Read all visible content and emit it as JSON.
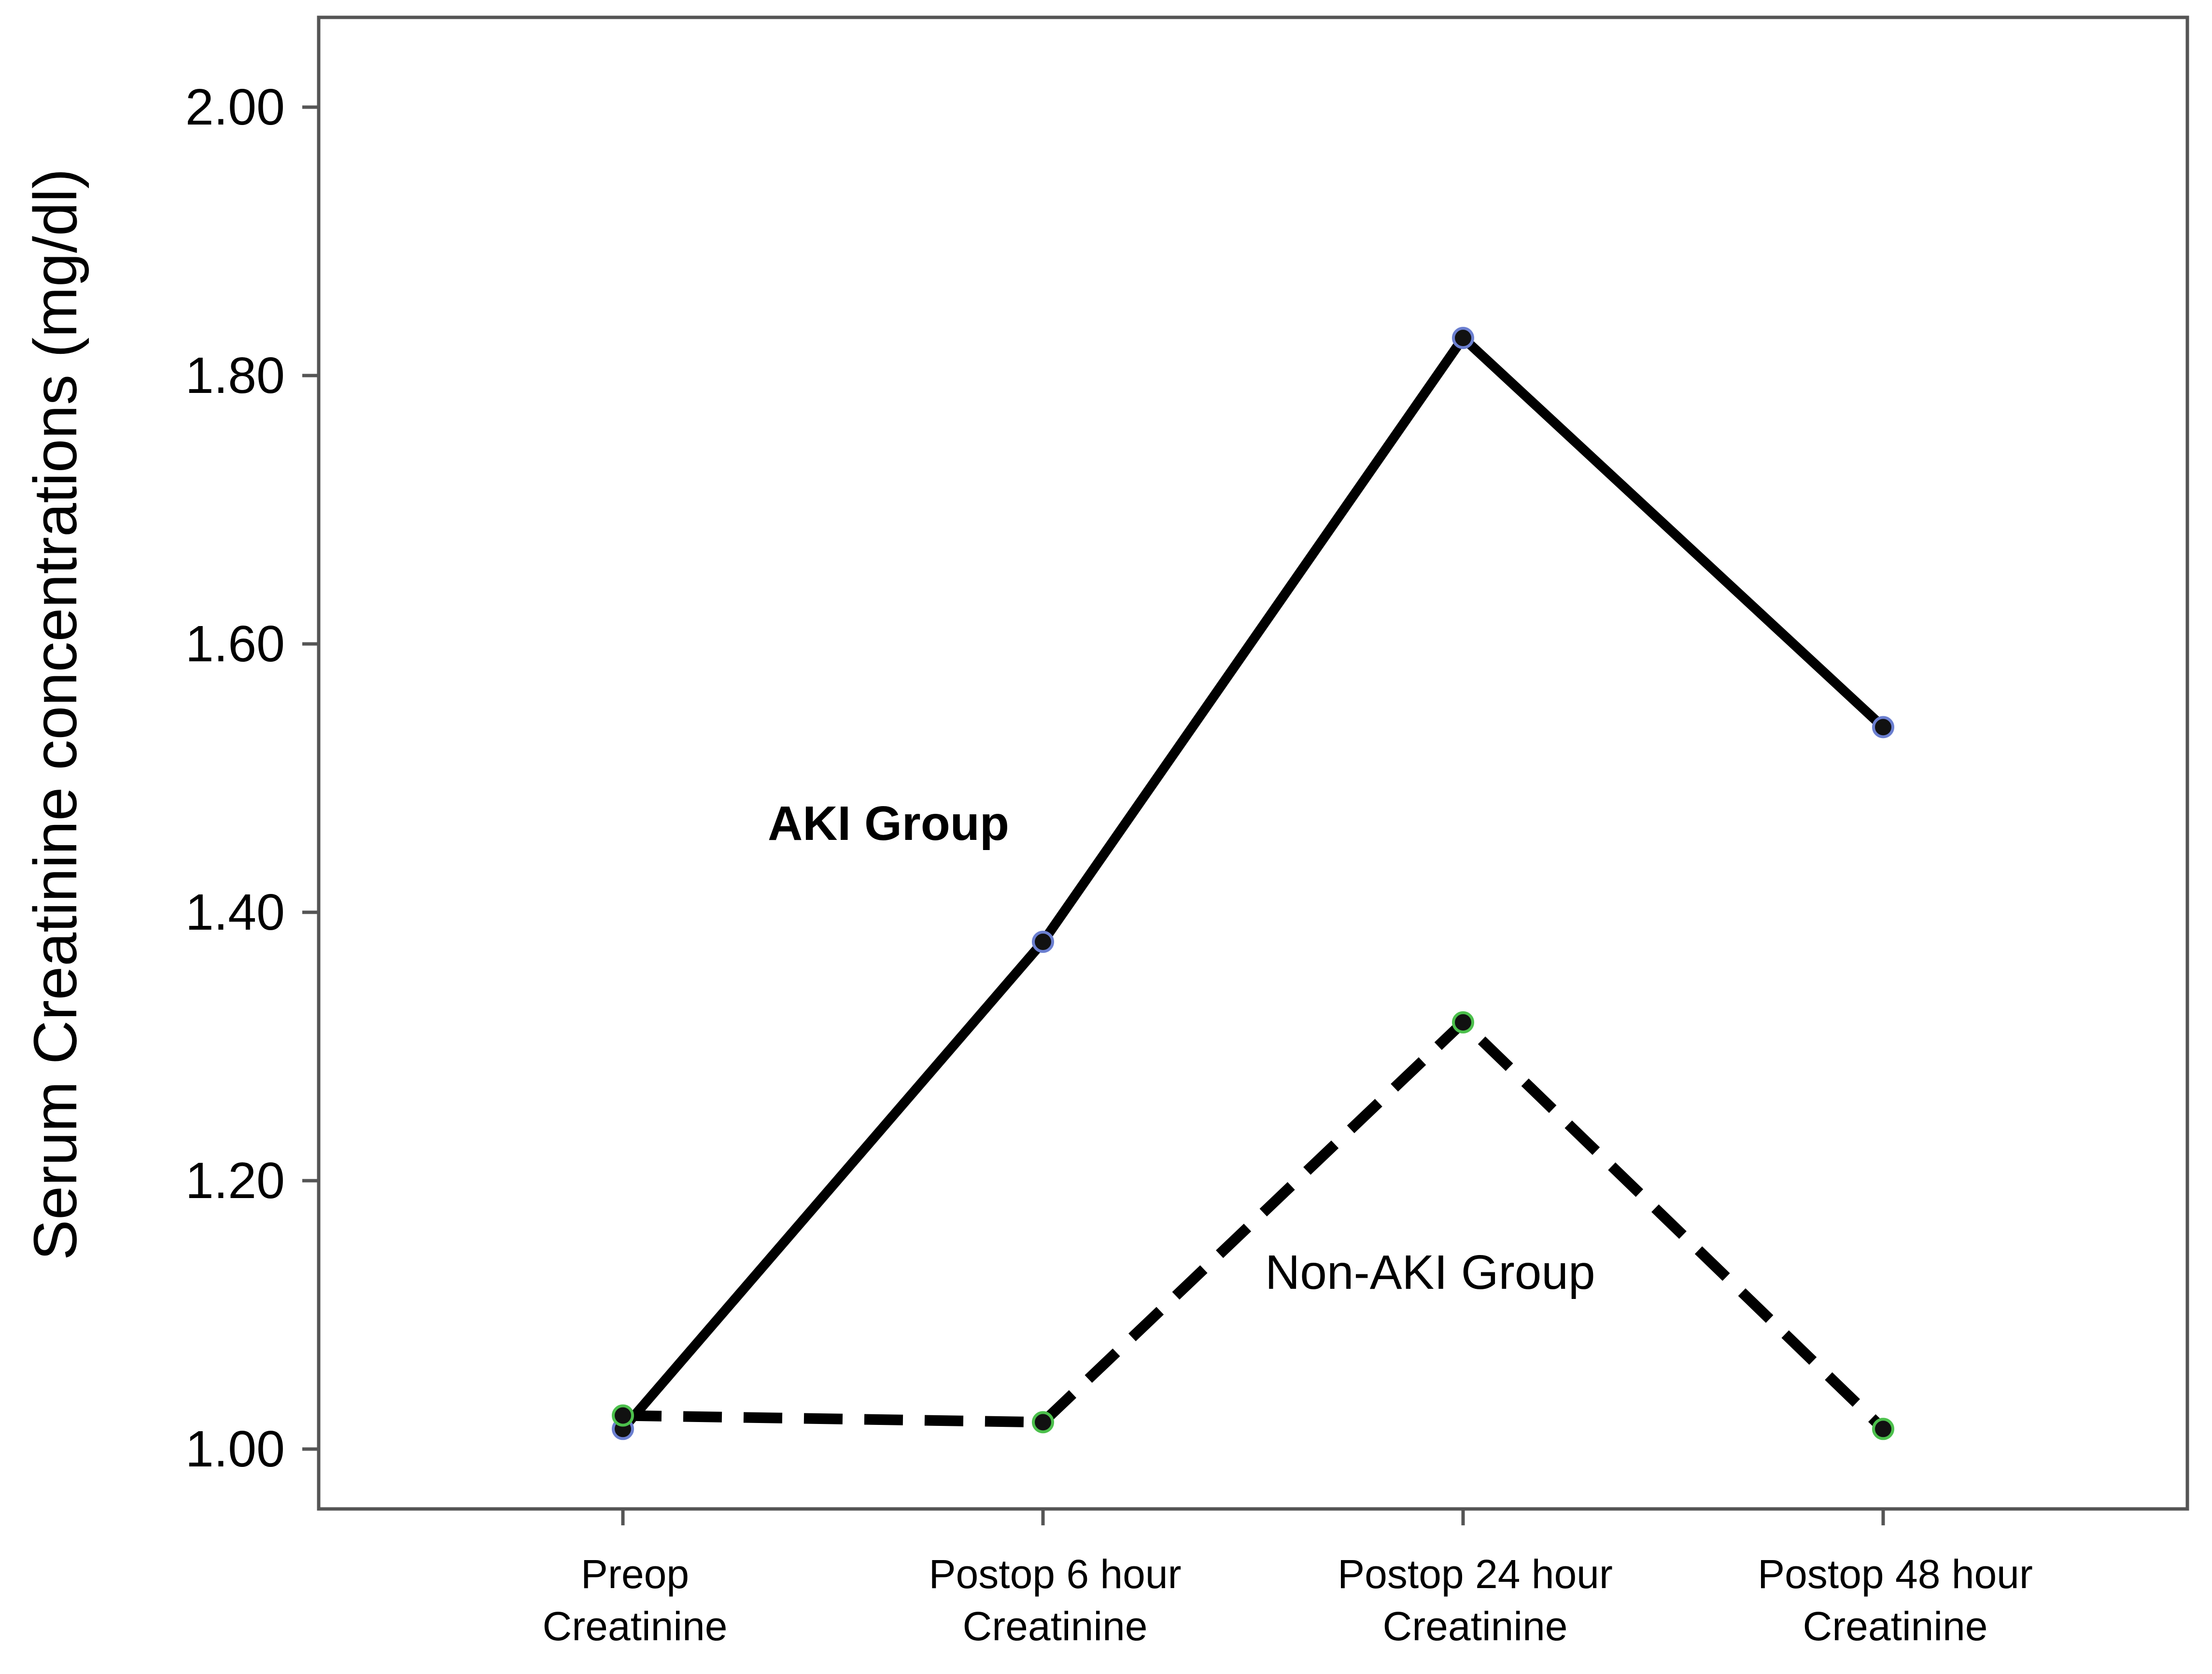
{
  "chart_data": {
    "type": "line",
    "ylabel": "Serum Creatinine concentrations (mg/dl)",
    "xlabel": "",
    "ylim": [
      0.95,
      2.05
    ],
    "yticks": [
      "1.00",
      "1.20",
      "1.40",
      "1.60",
      "1.80",
      "2.00"
    ],
    "ytick_values": [
      1.0,
      1.2,
      1.4,
      1.6,
      1.8,
      2.0
    ],
    "categories": [
      [
        "Preop",
        "Creatinine"
      ],
      [
        "Postop 6 hour",
        "Creatinine"
      ],
      [
        "Postop 24 hour",
        "Creatinine"
      ],
      [
        "Postop 48 hour",
        "Creatinine"
      ]
    ],
    "grid": false,
    "series": [
      {
        "label": "AKI Group",
        "values": [
          1.015,
          1.378,
          1.828,
          1.538
        ],
        "line_style": "solid",
        "line_color": "#000000",
        "marker_color": "#6b7fd0"
      },
      {
        "label": "Non-AKI Group",
        "values": [
          1.025,
          1.02,
          1.318,
          1.015
        ],
        "line_style": "dashed",
        "line_color": "#000000",
        "marker_color": "#4cc04c"
      }
    ],
    "annotations": [
      {
        "text": "AKI Group",
        "series": 0,
        "bold": true
      },
      {
        "text": "Non-AKI Group",
        "series": 1,
        "bold": false
      }
    ]
  }
}
